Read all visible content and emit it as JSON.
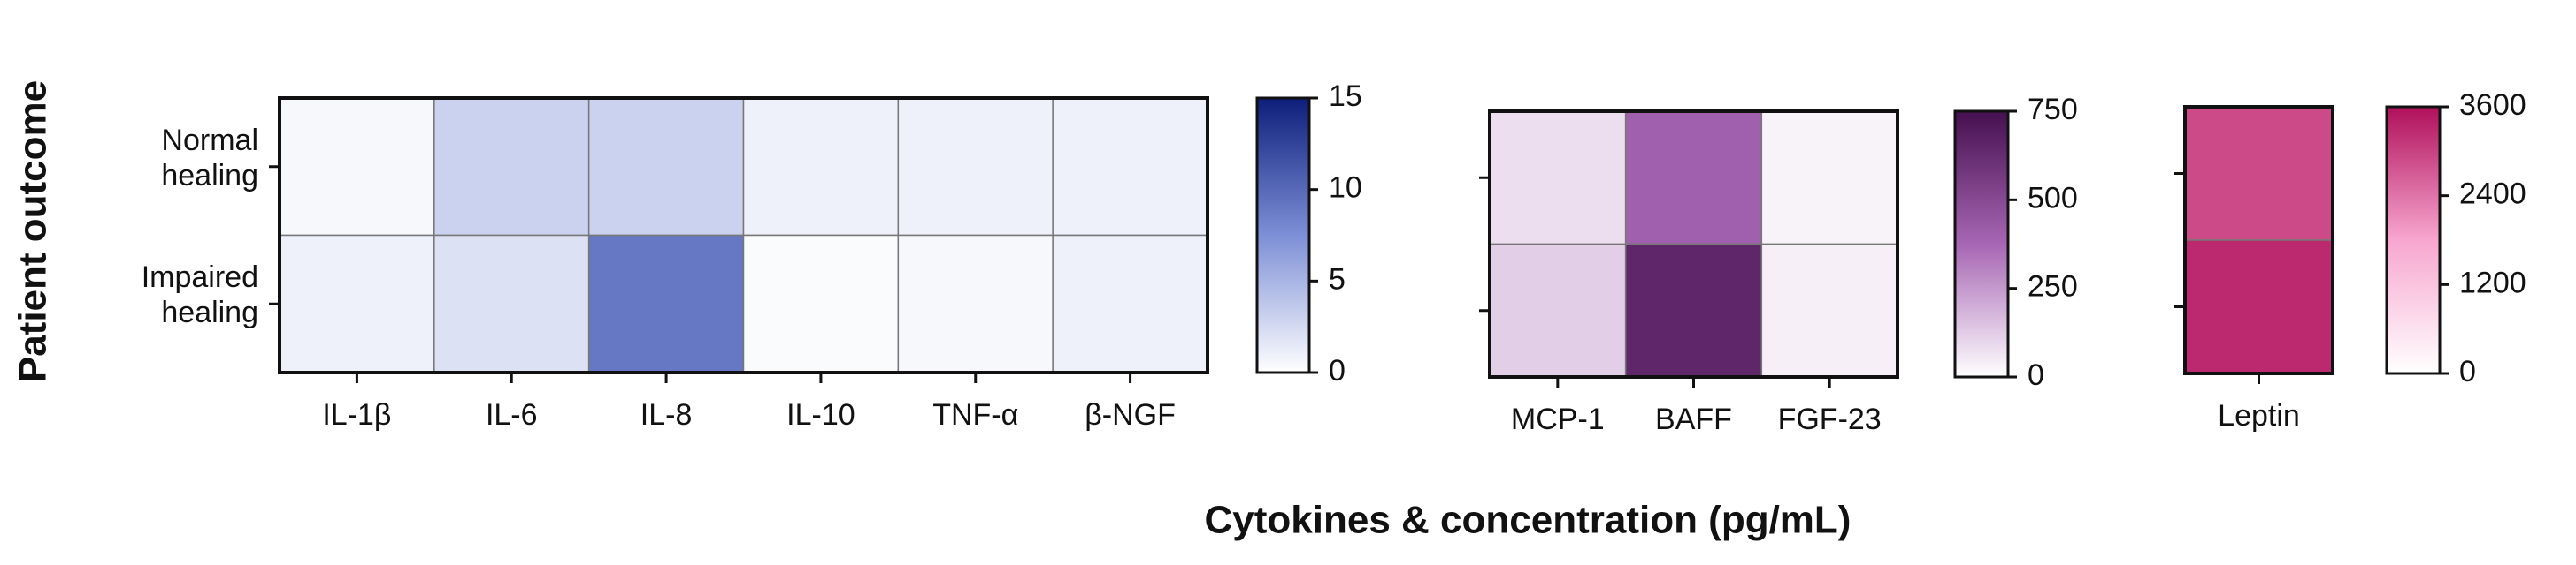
{
  "y_label": "Patient outcome",
  "x_label": "Cytokines & concentration (pg/mL)",
  "chart_data": [
    {
      "type": "heatmap",
      "categories": [
        "IL-1β",
        "IL-6",
        "IL-8",
        "IL-10",
        "TNF-α",
        "β-NGF"
      ],
      "rows": [
        "Normal healing",
        "Impaired healing"
      ],
      "values": [
        [
          0.5,
          3,
          3,
          1,
          1,
          1
        ],
        [
          1,
          2,
          9,
          0.3,
          0.5,
          1
        ]
      ],
      "colors": [
        "#ffffff",
        "#7d8fd6",
        "#0c1e7a"
      ],
      "zlim": [
        0,
        15
      ],
      "zticks": [
        0,
        5,
        10,
        15
      ]
    },
    {
      "type": "heatmap",
      "categories": [
        "MCP-1",
        "BAFF",
        "FGF-23"
      ],
      "values": [
        [
          80,
          400,
          30
        ],
        [
          120,
          650,
          40
        ]
      ],
      "colors": [
        "#ffffff",
        "#a766b4",
        "#45104f"
      ],
      "zlim": [
        0,
        750
      ],
      "zticks": [
        0,
        250,
        500,
        750
      ]
    },
    {
      "type": "heatmap",
      "categories": [
        "Leptin"
      ],
      "values": [
        [
          2900
        ],
        [
          3300
        ]
      ],
      "colors": [
        "#ffffff",
        "#f7a6cf",
        "#b0105a"
      ],
      "zlim": [
        0,
        3600
      ],
      "zticks": [
        0,
        1200,
        2400,
        3600
      ]
    }
  ]
}
